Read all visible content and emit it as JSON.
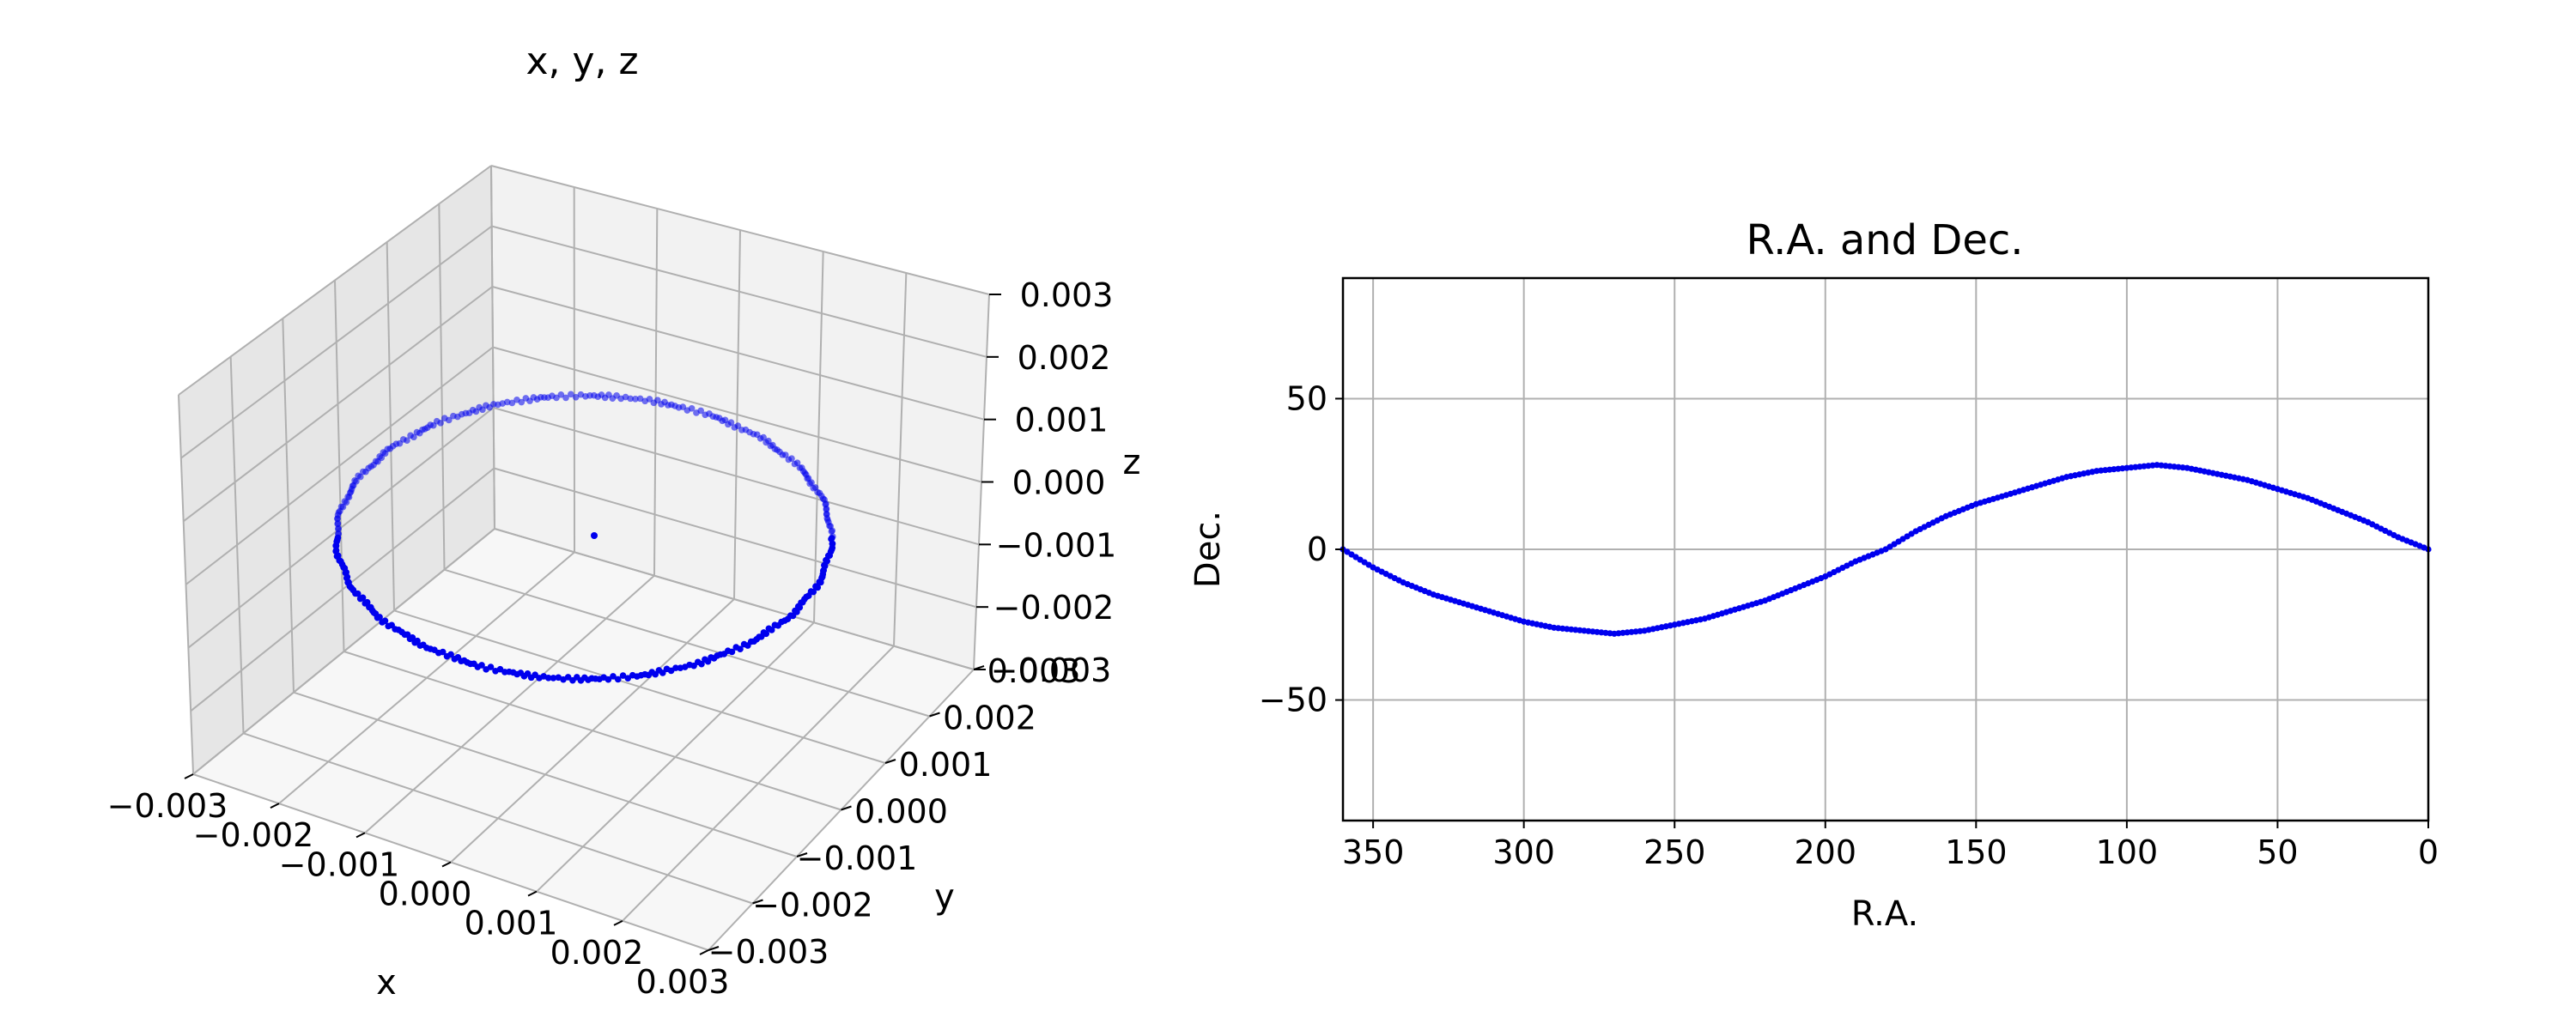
{
  "chart_data": [
    {
      "type": "scatter",
      "projection": "3d",
      "title": "x, y, z",
      "xlabel": "x",
      "ylabel": "y",
      "zlabel": "z",
      "xlim": [
        -0.003,
        0.003
      ],
      "ylim": [
        -0.003,
        0.003
      ],
      "zlim": [
        -0.003,
        0.003
      ],
      "xticks": [
        "−0.003",
        "−0.002",
        "−0.001",
        "0.000",
        "0.001",
        "0.002",
        "0.003"
      ],
      "yticks": [
        "−0.003",
        "−0.002",
        "−0.001",
        "0.000",
        "0.001",
        "0.002",
        "0.003"
      ],
      "zticks": [
        "−0.003",
        "−0.002",
        "−0.001",
        "0.000",
        "0.001",
        "0.002",
        "0.003"
      ],
      "grid": true,
      "marker_color": "#0000ee",
      "orbit": {
        "description": "circular orbit of ~360 points",
        "radius": 0.0025,
        "inclination_deg": 0,
        "center": [
          0,
          0,
          0
        ],
        "num_points": 360
      },
      "center_point": [
        0,
        0,
        0
      ]
    },
    {
      "type": "scatter",
      "title": "R.A. and Dec.",
      "xlabel": "R.A.",
      "ylabel": "Dec.",
      "xlim": [
        360,
        0
      ],
      "ylim": [
        -90,
        90
      ],
      "xticks": [
        "350",
        "300",
        "250",
        "200",
        "150",
        "100",
        "50",
        "0"
      ],
      "xtick_values": [
        350,
        300,
        250,
        200,
        150,
        100,
        50,
        0
      ],
      "yticks": [
        "−50",
        "0",
        "50"
      ],
      "ytick_values": [
        -50,
        0,
        50
      ],
      "grid": true,
      "marker_color": "#0000ee",
      "series": [
        {
          "x": [
            0,
            10,
            20,
            30,
            40,
            50,
            60,
            70,
            80,
            90,
            100,
            110,
            120,
            130,
            140,
            150,
            160,
            170,
            180,
            190,
            200,
            210,
            220,
            230,
            240,
            250,
            260,
            270,
            280,
            290,
            300,
            310,
            320,
            330,
            340,
            350,
            360
          ],
          "y": [
            0,
            4,
            9,
            13,
            17,
            20,
            23,
            25,
            27,
            28,
            27,
            26,
            24,
            21,
            18,
            15,
            11,
            6,
            0,
            -4,
            -9,
            -13,
            -17,
            -20,
            -23,
            -25,
            -27,
            -28,
            -27,
            -26,
            -24,
            -21,
            -18,
            -15,
            -11,
            -6,
            0
          ]
        }
      ]
    }
  ]
}
